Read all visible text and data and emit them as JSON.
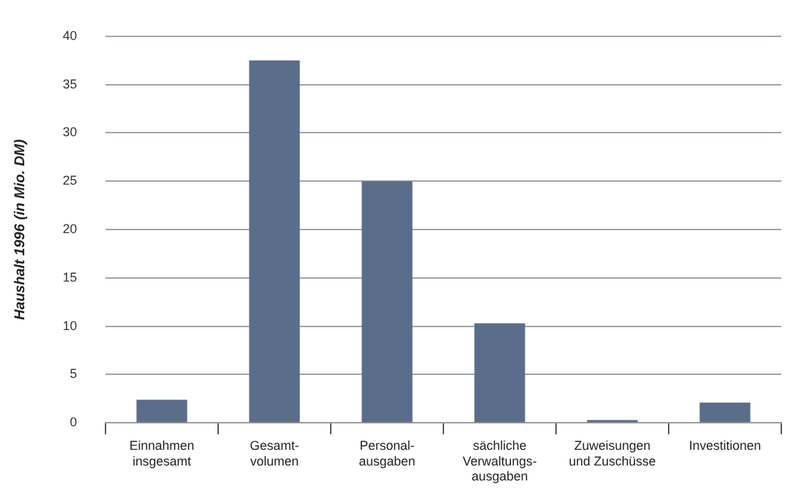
{
  "chart_data": {
    "type": "bar",
    "ylabel": "Haushalt 1996 (in Mio. DM)",
    "categories": [
      "Einnahmen\ninsgesamt",
      "Gesamt-\nvolumen",
      "Personal-\nausgaben",
      "sächliche\nVerwaltungs-\nausgaben",
      "Zuweisungen\nund Zuschüsse",
      "Investitionen"
    ],
    "values": [
      2.4,
      37.5,
      25,
      10.3,
      0.3,
      2.1
    ],
    "color": "#5a6d8b",
    "ylim": [
      0,
      40
    ],
    "yticks": [
      0,
      5,
      10,
      15,
      20,
      25,
      30,
      35,
      40
    ],
    "grid": "y",
    "legend": false
  }
}
